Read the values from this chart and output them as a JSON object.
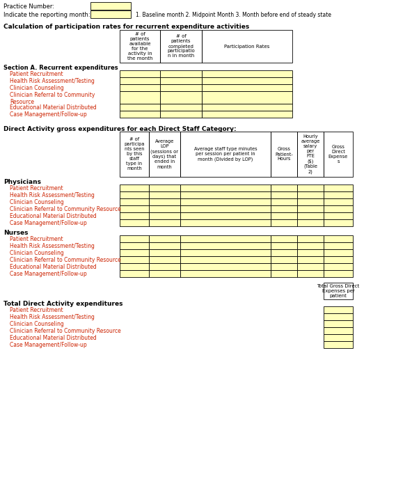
{
  "bg_color": "#ffffff",
  "yellow_fill": "#ffffbb",
  "border_color": "#000000",
  "text_color": "#000000",
  "red_text": "#cc2200",
  "practice_number_label": "Practice Number:",
  "reporting_month_label": "Indicate the reporting month:",
  "reporting_note": "1. Baseline month 2. Midpoint Month 3. Month before end of steady state",
  "section1_title": "Calculation of participation rates for recurrent expenditure activities",
  "section_a_title": "Section A. Recurrent expenditures",
  "section_a_rows": [
    "Patient Recruitment",
    "Health Risk Assessment/Testing",
    "Clinician Counseling",
    "Clinician Referral to Community\nResource",
    "Educational Material Distributed",
    "Case Management/Follow-up"
  ],
  "section2_title": "Direct Activity gross expenditures for each Direct Staff Category:",
  "physicians_title": "Physicians",
  "nurses_title": "Nurses",
  "staff_rows": [
    "Patient Recruitment",
    "Health Risk Assessment/Testing",
    "Clinician Counseling",
    "Clinician Referral to Community Resource",
    "Educational Material Distributed",
    "Case Management/Follow-up"
  ],
  "section3_title": "Total Direct Activity expenditures",
  "section3_rows": [
    "Patient Recruitment",
    "Health Risk Assessment/Testing",
    "Clinician Counseling",
    "Clinician Referral to Community Resource",
    "Educational Material Distributed",
    "Case Management/Follow-up"
  ],
  "total_col_header": "Total Gross Direct\nExpenses per\npatient",
  "s1_col_headers": [
    "# of\npatients\navailable\nfor the\nactivity in\nthe month",
    "# of\npatients\ncompleted\nparticipatio\nn in month",
    "Participation Rates"
  ],
  "s2_col_headers": [
    "# of\nparticipa\nnts seen\nby this\nstaff\ntype in\nmonth",
    "Average\nLOP\n(sessions or\ndays) that\nended in\nmonth",
    "Average staff type minutes\nper session per patient in\nmonth (Divided by LOP)",
    "Gross\nPatient-\nHours",
    "Hourly\naverage\nsalary\nper\nFTE\n($)\n(Table\n2)",
    "Gross\nDirect\nExpense\ns"
  ]
}
